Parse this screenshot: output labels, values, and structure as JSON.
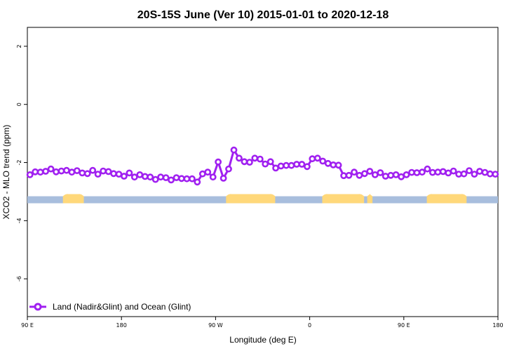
{
  "chart_data": {
    "type": "line",
    "title": "20S-15S June (Ver 10)   2015-01-01 to 2020-12-18",
    "xlabel": "Longitude (deg E)",
    "ylabel": "XCO2 - MLO trend (ppm)",
    "x_ticks": [
      {
        "value": 90,
        "label": "90 E"
      },
      {
        "value": 180,
        "label": "180"
      },
      {
        "value": 270,
        "label": "90 W"
      },
      {
        "value": 360,
        "label": "0"
      },
      {
        "value": 450,
        "label": "90 E"
      },
      {
        "value": 540,
        "label": "180"
      }
    ],
    "y_ticks": [
      {
        "value": 2,
        "label": "2"
      },
      {
        "value": 0,
        "label": "0"
      },
      {
        "value": -2,
        "label": "-2"
      },
      {
        "value": -4,
        "label": "-4"
      },
      {
        "value": -6,
        "label": "-6"
      }
    ],
    "xlim": [
      90,
      540
    ],
    "ylim": [
      -7.3,
      2.65
    ],
    "grid": false,
    "legend_position": "bottom-left",
    "series": [
      {
        "name": "Land (Nadir&Glint) and Ocean (Glint)",
        "color": "#a020f0",
        "x": [
          92.5,
          97.5,
          102.5,
          107.5,
          112.5,
          117.5,
          122.5,
          127.5,
          132.5,
          137.5,
          142.5,
          147.5,
          152.5,
          157.5,
          162.5,
          167.5,
          172.5,
          177.5,
          182.5,
          187.5,
          192.5,
          197.5,
          202.5,
          207.5,
          212.5,
          217.5,
          222.5,
          227.5,
          232.5,
          237.5,
          242.5,
          247.5,
          252.5,
          257.5,
          262.5,
          267.5,
          272.5,
          277.5,
          282.5,
          287.5,
          292.5,
          297.5,
          302.5,
          307.5,
          312.5,
          317.5,
          322.5,
          327.5,
          332.5,
          337.5,
          342.5,
          347.5,
          352.5,
          357.5,
          362.5,
          367.5,
          372.5,
          377.5,
          382.5,
          387.5,
          392.5,
          397.5,
          402.5,
          407.5,
          412.5,
          417.5,
          422.5,
          427.5,
          432.5,
          437.5,
          442.5,
          447.5,
          452.5,
          457.5,
          462.5,
          467.5,
          472.5,
          477.5,
          482.5,
          487.5,
          492.5,
          497.5,
          502.5,
          507.5,
          512.5,
          517.5,
          522.5,
          527.5,
          532.5,
          537.5
        ],
        "y": [
          -2.42,
          -2.32,
          -2.33,
          -2.3,
          -2.22,
          -2.32,
          -2.29,
          -2.27,
          -2.33,
          -2.28,
          -2.36,
          -2.38,
          -2.27,
          -2.4,
          -2.29,
          -2.31,
          -2.38,
          -2.4,
          -2.47,
          -2.36,
          -2.5,
          -2.42,
          -2.48,
          -2.5,
          -2.58,
          -2.5,
          -2.52,
          -2.6,
          -2.52,
          -2.55,
          -2.56,
          -2.56,
          -2.67,
          -2.39,
          -2.33,
          -2.5,
          -1.98,
          -2.54,
          -2.22,
          -1.57,
          -1.85,
          -1.97,
          -1.99,
          -1.85,
          -1.88,
          -2.05,
          -1.97,
          -2.19,
          -2.12,
          -2.1,
          -2.1,
          -2.06,
          -2.06,
          -2.14,
          -1.87,
          -1.85,
          -1.95,
          -2.03,
          -2.08,
          -2.09,
          -2.45,
          -2.44,
          -2.33,
          -2.44,
          -2.38,
          -2.3,
          -2.42,
          -2.35,
          -2.47,
          -2.44,
          -2.42,
          -2.49,
          -2.42,
          -2.34,
          -2.35,
          -2.33,
          -2.22,
          -2.34,
          -2.33,
          -2.31,
          -2.36,
          -2.29,
          -2.4,
          -2.39,
          -2.28,
          -2.4,
          -2.3,
          -2.34,
          -2.39,
          -2.4
        ]
      }
    ],
    "surface_band": {
      "y_value": -3.28,
      "ocean_color": "#a8bedd",
      "land_color": "#ffd87a",
      "land_segments": [
        [
          124,
          144
        ],
        [
          280,
          327
        ],
        [
          372,
          412
        ],
        [
          415,
          420
        ],
        [
          472,
          510
        ]
      ]
    }
  }
}
